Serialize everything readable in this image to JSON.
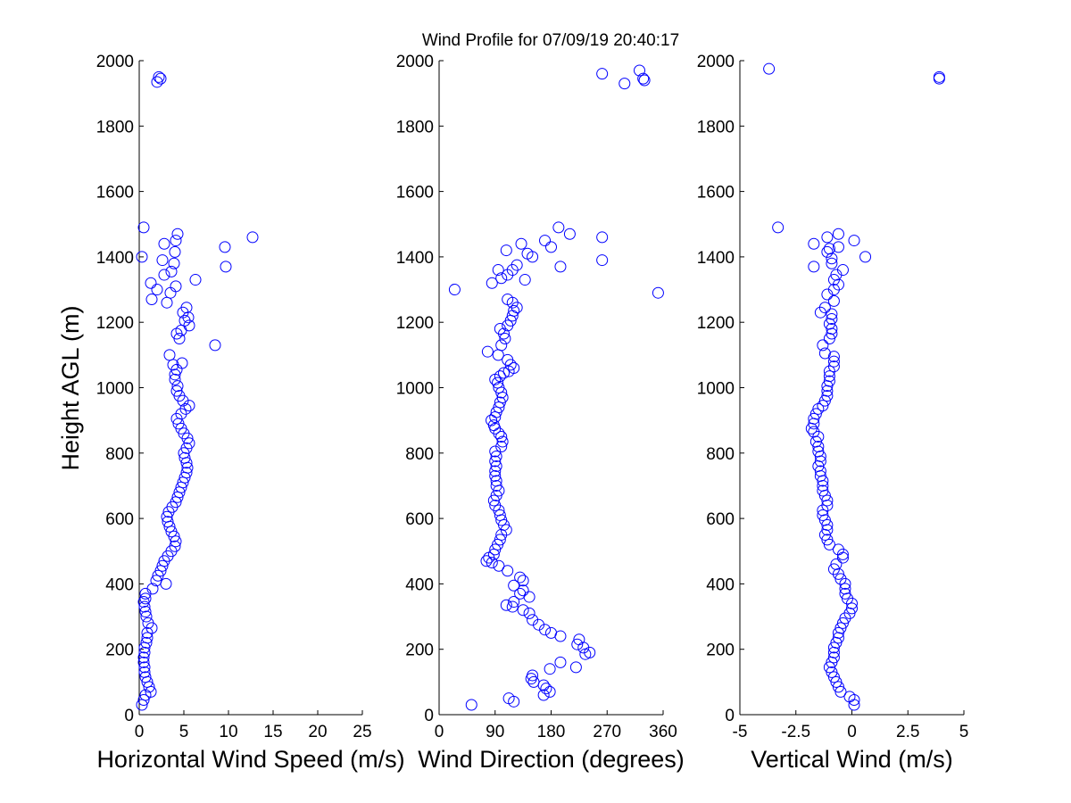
{
  "figure": {
    "title": "Wind Profile for  07/09/19 20:40:17",
    "ylabel": "Height AGL (m)"
  },
  "colors": {
    "marker": "#0000ff",
    "axes": "#000000",
    "background": "#ffffff"
  },
  "chart_data": [
    {
      "type": "scatter",
      "xlabel": "Horizontal Wind Speed (m/s)",
      "xlim": [
        0,
        25
      ],
      "ylim": [
        0,
        2000
      ],
      "xticks": [
        "0",
        "5",
        "10",
        "15",
        "20",
        "25"
      ],
      "yticks": [
        "0",
        "200",
        "400",
        "600",
        "800",
        "1000",
        "1200",
        "1400",
        "1600",
        "1800",
        "2000"
      ],
      "points": [
        [
          0.3,
          30
        ],
        [
          0.5,
          45
        ],
        [
          0.7,
          60
        ],
        [
          1.3,
          70
        ],
        [
          1.1,
          85
        ],
        [
          0.9,
          100
        ],
        [
          0.7,
          115
        ],
        [
          0.6,
          130
        ],
        [
          0.6,
          145
        ],
        [
          0.5,
          160
        ],
        [
          0.5,
          175
        ],
        [
          0.6,
          190
        ],
        [
          0.6,
          205
        ],
        [
          0.8,
          220
        ],
        [
          0.9,
          235
        ],
        [
          0.9,
          250
        ],
        [
          1.4,
          265
        ],
        [
          1.0,
          280
        ],
        [
          0.8,
          300
        ],
        [
          0.7,
          315
        ],
        [
          0.6,
          330
        ],
        [
          0.5,
          345
        ],
        [
          0.7,
          355
        ],
        [
          0.7,
          370
        ],
        [
          1.5,
          385
        ],
        [
          3.0,
          400
        ],
        [
          1.9,
          410
        ],
        [
          2.1,
          425
        ],
        [
          2.4,
          440
        ],
        [
          2.6,
          455
        ],
        [
          2.8,
          470
        ],
        [
          3.2,
          485
        ],
        [
          3.6,
          500
        ],
        [
          4.0,
          515
        ],
        [
          4.1,
          530
        ],
        [
          3.9,
          545
        ],
        [
          3.6,
          560
        ],
        [
          3.4,
          575
        ],
        [
          3.2,
          590
        ],
        [
          3.1,
          605
        ],
        [
          3.3,
          620
        ],
        [
          3.7,
          635
        ],
        [
          4.1,
          650
        ],
        [
          4.3,
          665
        ],
        [
          4.5,
          680
        ],
        [
          4.7,
          695
        ],
        [
          4.9,
          710
        ],
        [
          5.1,
          725
        ],
        [
          5.3,
          740
        ],
        [
          5.4,
          755
        ],
        [
          5.3,
          770
        ],
        [
          5.1,
          785
        ],
        [
          5.0,
          800
        ],
        [
          5.3,
          815
        ],
        [
          5.6,
          830
        ],
        [
          5.4,
          845
        ],
        [
          5.0,
          860
        ],
        [
          4.7,
          875
        ],
        [
          4.4,
          890
        ],
        [
          4.2,
          905
        ],
        [
          4.7,
          920
        ],
        [
          5.2,
          935
        ],
        [
          5.6,
          945
        ],
        [
          4.9,
          960
        ],
        [
          4.5,
          975
        ],
        [
          4.2,
          990
        ],
        [
          4.3,
          1005
        ],
        [
          4.0,
          1025
        ],
        [
          4.0,
          1040
        ],
        [
          4.2,
          1055
        ],
        [
          3.8,
          1070
        ],
        [
          4.8,
          1075
        ],
        [
          3.4,
          1100
        ],
        [
          8.5,
          1130
        ],
        [
          4.5,
          1150
        ],
        [
          4.2,
          1165
        ],
        [
          4.7,
          1175
        ],
        [
          5.6,
          1190
        ],
        [
          5.1,
          1205
        ],
        [
          5.5,
          1215
        ],
        [
          4.9,
          1230
        ],
        [
          5.3,
          1245
        ],
        [
          3.1,
          1260
        ],
        [
          1.4,
          1270
        ],
        [
          3.5,
          1290
        ],
        [
          2.0,
          1300
        ],
        [
          4.1,
          1310
        ],
        [
          1.3,
          1320
        ],
        [
          6.3,
          1330
        ],
        [
          2.8,
          1345
        ],
        [
          3.6,
          1355
        ],
        [
          9.7,
          1370
        ],
        [
          3.9,
          1380
        ],
        [
          2.6,
          1390
        ],
        [
          0.3,
          1400
        ],
        [
          4.0,
          1415
        ],
        [
          9.6,
          1430
        ],
        [
          2.8,
          1440
        ],
        [
          4.1,
          1450
        ],
        [
          12.7,
          1460
        ],
        [
          4.3,
          1470
        ],
        [
          0.5,
          1490
        ],
        [
          2.0,
          1935
        ],
        [
          2.4,
          1945
        ],
        [
          2.2,
          1950
        ]
      ]
    },
    {
      "type": "scatter",
      "xlabel": "Wind Direction (degrees)",
      "xlim": [
        0,
        360
      ],
      "ylim": [
        0,
        2000
      ],
      "xticks": [
        "0",
        "90",
        "180",
        "270",
        "360"
      ],
      "yticks": [
        "0",
        "200",
        "400",
        "600",
        "800",
        "1000",
        "1200",
        "1400",
        "1600",
        "1800",
        "2000"
      ],
      "points": [
        [
          52,
          30
        ],
        [
          120,
          40
        ],
        [
          112,
          50
        ],
        [
          168,
          60
        ],
        [
          178,
          70
        ],
        [
          172,
          80
        ],
        [
          168,
          90
        ],
        [
          152,
          100
        ],
        [
          148,
          110
        ],
        [
          150,
          120
        ],
        [
          178,
          140
        ],
        [
          195,
          160
        ],
        [
          220,
          145
        ],
        [
          235,
          185
        ],
        [
          242,
          190
        ],
        [
          232,
          205
        ],
        [
          222,
          215
        ],
        [
          225,
          230
        ],
        [
          195,
          240
        ],
        [
          180,
          250
        ],
        [
          170,
          260
        ],
        [
          160,
          275
        ],
        [
          150,
          290
        ],
        [
          145,
          310
        ],
        [
          135,
          320
        ],
        [
          118,
          330
        ],
        [
          108,
          335
        ],
        [
          120,
          345
        ],
        [
          145,
          360
        ],
        [
          130,
          370
        ],
        [
          135,
          380
        ],
        [
          120,
          395
        ],
        [
          135,
          410
        ],
        [
          130,
          420
        ],
        [
          110,
          440
        ],
        [
          96,
          455
        ],
        [
          85,
          465
        ],
        [
          76,
          470
        ],
        [
          80,
          480
        ],
        [
          88,
          490
        ],
        [
          90,
          505
        ],
        [
          94,
          520
        ],
        [
          98,
          535
        ],
        [
          100,
          550
        ],
        [
          108,
          565
        ],
        [
          104,
          580
        ],
        [
          100,
          595
        ],
        [
          98,
          610
        ],
        [
          96,
          625
        ],
        [
          90,
          640
        ],
        [
          88,
          655
        ],
        [
          92,
          670
        ],
        [
          96,
          685
        ],
        [
          92,
          700
        ],
        [
          92,
          715
        ],
        [
          90,
          730
        ],
        [
          90,
          745
        ],
        [
          92,
          760
        ],
        [
          90,
          775
        ],
        [
          92,
          790
        ],
        [
          90,
          805
        ],
        [
          100,
          820
        ],
        [
          102,
          835
        ],
        [
          100,
          850
        ],
        [
          96,
          860
        ],
        [
          90,
          875
        ],
        [
          88,
          885
        ],
        [
          84,
          900
        ],
        [
          90,
          910
        ],
        [
          92,
          925
        ],
        [
          96,
          940
        ],
        [
          98,
          955
        ],
        [
          102,
          970
        ],
        [
          100,
          985
        ],
        [
          96,
          1000
        ],
        [
          94,
          1015
        ],
        [
          90,
          1025
        ],
        [
          98,
          1035
        ],
        [
          104,
          1045
        ],
        [
          112,
          1050
        ],
        [
          120,
          1060
        ],
        [
          115,
          1070
        ],
        [
          110,
          1085
        ],
        [
          95,
          1100
        ],
        [
          78,
          1110
        ],
        [
          100,
          1130
        ],
        [
          106,
          1150
        ],
        [
          104,
          1165
        ],
        [
          98,
          1180
        ],
        [
          110,
          1190
        ],
        [
          115,
          1205
        ],
        [
          118,
          1220
        ],
        [
          120,
          1235
        ],
        [
          125,
          1245
        ],
        [
          118,
          1260
        ],
        [
          110,
          1270
        ],
        [
          25,
          1300
        ],
        [
          85,
          1320
        ],
        [
          100,
          1335
        ],
        [
          110,
          1345
        ],
        [
          118,
          1360
        ],
        [
          95,
          1360
        ],
        [
          138,
          1330
        ],
        [
          125,
          1375
        ],
        [
          195,
          1370
        ],
        [
          262,
          1390
        ],
        [
          150,
          1400
        ],
        [
          142,
          1410
        ],
        [
          108,
          1420
        ],
        [
          180,
          1430
        ],
        [
          132,
          1440
        ],
        [
          170,
          1450
        ],
        [
          262,
          1460
        ],
        [
          210,
          1470
        ],
        [
          192,
          1490
        ],
        [
          352,
          1290
        ],
        [
          262,
          1960
        ],
        [
          298,
          1930
        ],
        [
          322,
          1970
        ],
        [
          328,
          1945
        ],
        [
          330,
          1940
        ]
      ]
    },
    {
      "type": "scatter",
      "xlabel": "Vertical Wind (m/s)",
      "xlim": [
        -5,
        5
      ],
      "ylim": [
        0,
        2000
      ],
      "xticks": [
        "-5",
        "-2.5",
        "0",
        "2.5",
        "5"
      ],
      "yticks": [
        "0",
        "200",
        "400",
        "600",
        "800",
        "1000",
        "1200",
        "1400",
        "1600",
        "1800",
        "2000"
      ],
      "points": [
        [
          0.1,
          30
        ],
        [
          0.1,
          45
        ],
        [
          -0.1,
          55
        ],
        [
          -0.5,
          70
        ],
        [
          -0.6,
          85
        ],
        [
          -0.7,
          100
        ],
        [
          -0.8,
          115
        ],
        [
          -0.9,
          130
        ],
        [
          -1.0,
          145
        ],
        [
          -0.9,
          160
        ],
        [
          -0.8,
          175
        ],
        [
          -0.8,
          190
        ],
        [
          -0.8,
          205
        ],
        [
          -0.7,
          220
        ],
        [
          -0.6,
          235
        ],
        [
          -0.6,
          250
        ],
        [
          -0.5,
          265
        ],
        [
          -0.4,
          280
        ],
        [
          -0.3,
          295
        ],
        [
          -0.1,
          310
        ],
        [
          0.0,
          325
        ],
        [
          0.0,
          340
        ],
        [
          -0.2,
          355
        ],
        [
          -0.3,
          370
        ],
        [
          -0.3,
          385
        ],
        [
          -0.3,
          400
        ],
        [
          -0.5,
          415
        ],
        [
          -0.6,
          430
        ],
        [
          -0.8,
          445
        ],
        [
          -0.7,
          460
        ],
        [
          -0.4,
          480
        ],
        [
          -0.4,
          490
        ],
        [
          -0.6,
          505
        ],
        [
          -1.0,
          520
        ],
        [
          -1.1,
          535
        ],
        [
          -1.2,
          550
        ],
        [
          -1.1,
          565
        ],
        [
          -1.1,
          580
        ],
        [
          -1.2,
          595
        ],
        [
          -1.3,
          610
        ],
        [
          -1.3,
          625
        ],
        [
          -1.1,
          640
        ],
        [
          -1.1,
          655
        ],
        [
          -1.2,
          670
        ],
        [
          -1.3,
          685
        ],
        [
          -1.3,
          700
        ],
        [
          -1.3,
          715
        ],
        [
          -1.4,
          730
        ],
        [
          -1.4,
          745
        ],
        [
          -1.5,
          760
        ],
        [
          -1.4,
          775
        ],
        [
          -1.4,
          790
        ],
        [
          -1.5,
          805
        ],
        [
          -1.5,
          820
        ],
        [
          -1.6,
          835
        ],
        [
          -1.5,
          850
        ],
        [
          -1.7,
          865
        ],
        [
          -1.8,
          875
        ],
        [
          -1.7,
          890
        ],
        [
          -1.7,
          905
        ],
        [
          -1.6,
          920
        ],
        [
          -1.5,
          935
        ],
        [
          -1.3,
          945
        ],
        [
          -1.2,
          960
        ],
        [
          -1.1,
          975
        ],
        [
          -1.1,
          990
        ],
        [
          -1.1,
          1005
        ],
        [
          -1.0,
          1020
        ],
        [
          -1.0,
          1035
        ],
        [
          -1.0,
          1050
        ],
        [
          -0.8,
          1065
        ],
        [
          -0.8,
          1080
        ],
        [
          -0.8,
          1095
        ],
        [
          -1.2,
          1105
        ],
        [
          -1.3,
          1130
        ],
        [
          -1.0,
          1150
        ],
        [
          -0.9,
          1165
        ],
        [
          -0.9,
          1180
        ],
        [
          -1.0,
          1195
        ],
        [
          -0.9,
          1210
        ],
        [
          -0.9,
          1225
        ],
        [
          -1.4,
          1230
        ],
        [
          -1.2,
          1245
        ],
        [
          -0.8,
          1265
        ],
        [
          -1.1,
          1285
        ],
        [
          -0.8,
          1300
        ],
        [
          -0.6,
          1315
        ],
        [
          -0.8,
          1330
        ],
        [
          -0.7,
          1345
        ],
        [
          -0.4,
          1360
        ],
        [
          -1.7,
          1370
        ],
        [
          -0.9,
          1380
        ],
        [
          -0.9,
          1395
        ],
        [
          0.6,
          1400
        ],
        [
          -1.1,
          1415
        ],
        [
          -1.0,
          1425
        ],
        [
          -0.6,
          1430
        ],
        [
          -1.7,
          1440
        ],
        [
          0.1,
          1450
        ],
        [
          -1.1,
          1460
        ],
        [
          -0.6,
          1470
        ],
        [
          -3.3,
          1490
        ],
        [
          -3.7,
          1975
        ],
        [
          3.9,
          1945
        ],
        [
          3.9,
          1950
        ]
      ]
    }
  ]
}
